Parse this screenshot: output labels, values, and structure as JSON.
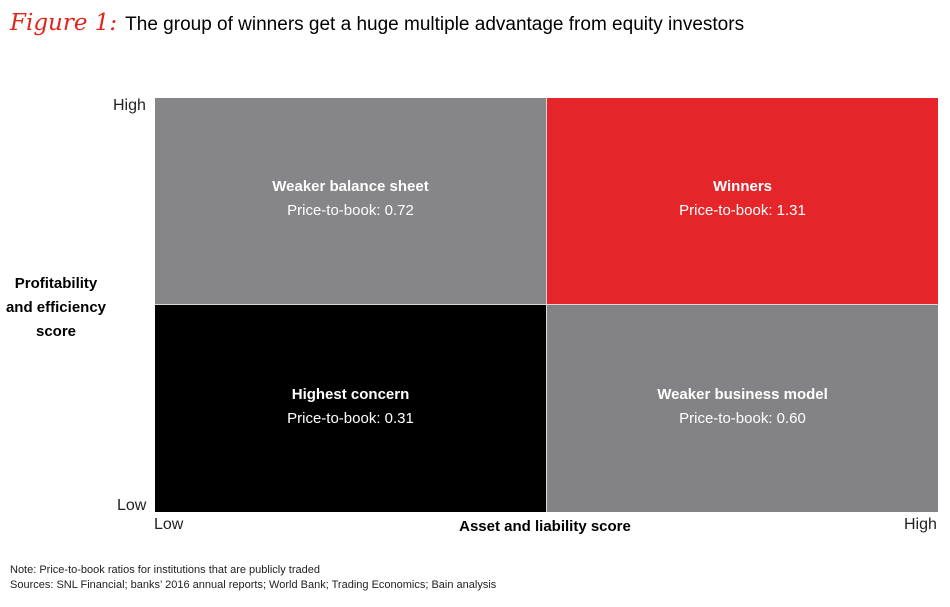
{
  "title": {
    "figure_label": "Figure 1:",
    "text": "The group of winners get a huge multiple advantage from equity investors"
  },
  "y_axis": {
    "title_lines": [
      "Profitability",
      "and efficiency",
      "score"
    ],
    "high_label": "High",
    "low_label": "Low"
  },
  "x_axis": {
    "title": "Asset and liability score",
    "low_label": "Low",
    "high_label": "High"
  },
  "quadrants": {
    "top_left": {
      "name": "Weaker balance sheet",
      "value_text": "Price-to-book: 0.72",
      "color": "#868689"
    },
    "top_right": {
      "name": "Winners",
      "value_text": "Price-to-book: 1.31",
      "color": "#e42529"
    },
    "bottom_left": {
      "name": "Highest concern",
      "value_text": "Price-to-book: 0.31",
      "color": "#000000"
    },
    "bottom_right": {
      "name": "Weaker business model",
      "value_text": "Price-to-book: 0.60",
      "color": "#838386"
    }
  },
  "notes": {
    "note": "Note: Price-to-book ratios for institutions that are publicly traded",
    "sources": "Sources: SNL Financial; banks’ 2016 annual reports; World Bank; Trading Economics; Bain analysis"
  }
}
